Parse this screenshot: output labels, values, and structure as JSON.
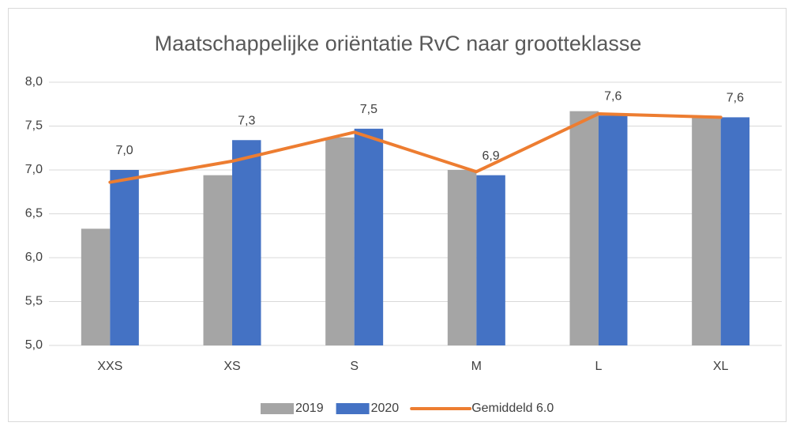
{
  "chart_data": {
    "type": "bar",
    "title": "Maatschappelijke oriëntatie RvC naar grootteklasse",
    "categories": [
      "XXS",
      "XS",
      "S",
      "M",
      "L",
      "XL"
    ],
    "series": [
      {
        "name": "2019",
        "color": "#a5a5a5",
        "values": [
          6.33,
          6.94,
          7.37,
          7.0,
          7.67,
          7.6
        ]
      },
      {
        "name": "2020",
        "color": "#4472c4",
        "values": [
          7.0,
          7.34,
          7.47,
          6.94,
          7.62,
          7.6
        ],
        "value_labels": [
          "7,0",
          "7,3",
          "7,5",
          "6,9",
          "7,6",
          "7,6"
        ]
      },
      {
        "name": "Gemiddeld 6.0",
        "color": "#ed7d31",
        "type": "line",
        "values": [
          6.86,
          7.1,
          7.43,
          6.98,
          7.64,
          7.6
        ]
      }
    ],
    "ylim": [
      5,
      8
    ],
    "yticks": [
      {
        "value": 5,
        "label": "5,0"
      },
      {
        "value": 5.5,
        "label": "5,5"
      },
      {
        "value": 6,
        "label": "6,0"
      },
      {
        "value": 6.5,
        "label": "6,5"
      },
      {
        "value": 7,
        "label": "7,0"
      },
      {
        "value": 7.5,
        "label": "7,5"
      },
      {
        "value": 8,
        "label": "8,0"
      }
    ],
    "grid": true,
    "legend": "bottom"
  }
}
